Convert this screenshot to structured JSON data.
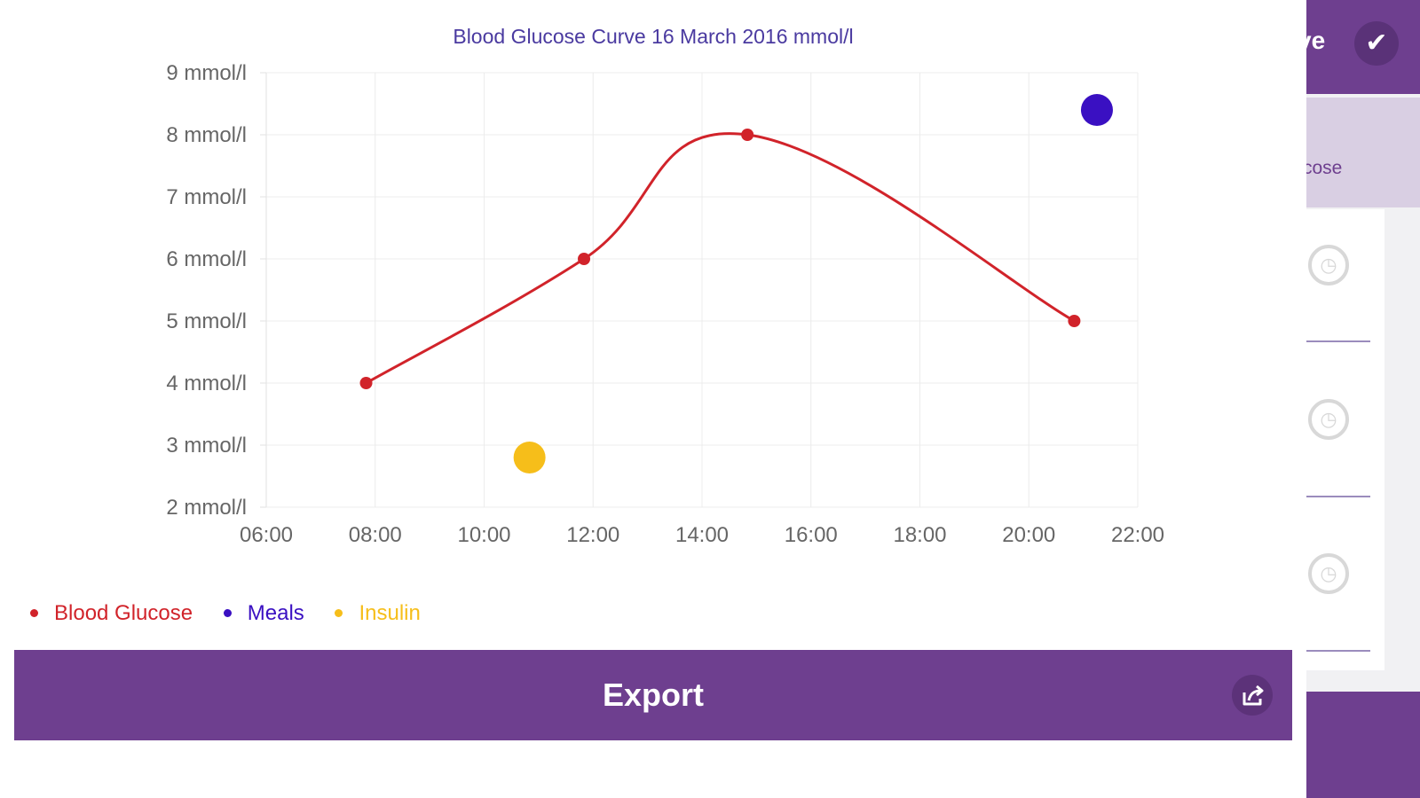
{
  "background_app": {
    "save_label": "ve",
    "tab_label": "cose"
  },
  "export": {
    "label": "Export",
    "icon": "share-export-icon"
  },
  "colors": {
    "accent": "#6e3f8f",
    "glucose": "#d1232a",
    "meals": "#3a10c2",
    "insulin": "#f6be1a",
    "title": "#4a3aa0"
  },
  "chart_data": {
    "type": "line",
    "title": "Blood Glucose Curve 16 March 2016 mmol/l",
    "xlabel": "",
    "ylabel": "",
    "xlim": [
      "06:00",
      "22:00"
    ],
    "ylim": [
      2,
      9
    ],
    "x_ticks": [
      "06:00",
      "08:00",
      "10:00",
      "12:00",
      "14:00",
      "16:00",
      "18:00",
      "20:00",
      "22:00"
    ],
    "y_ticks": [
      "2 mmol/l",
      "3 mmol/l",
      "4 mmol/l",
      "5 mmol/l",
      "6 mmol/l",
      "7 mmol/l",
      "8 mmol/l",
      "9 mmol/l"
    ],
    "grid": true,
    "legend": "bottom-left",
    "series": [
      {
        "name": "Blood Glucose",
        "type": "line",
        "smooth": true,
        "points": [
          {
            "x": "07:50",
            "y": 4
          },
          {
            "x": "11:50",
            "y": 6
          },
          {
            "x": "14:50",
            "y": 8
          },
          {
            "x": "20:50",
            "y": 5
          }
        ]
      },
      {
        "name": "Meals",
        "type": "scatter",
        "points": [
          {
            "x": "21:15",
            "y": 8.4
          }
        ]
      },
      {
        "name": "Insulin",
        "type": "scatter",
        "points": [
          {
            "x": "10:50",
            "y": 2.8
          }
        ]
      }
    ]
  }
}
